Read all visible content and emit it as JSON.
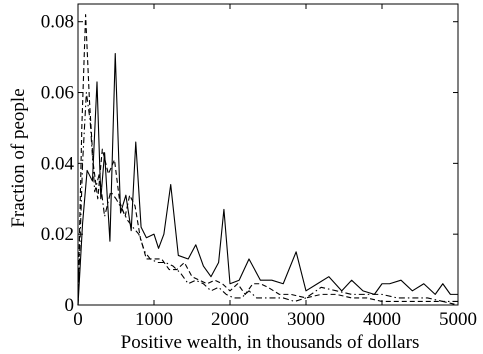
{
  "chart_data": {
    "type": "line",
    "title": "",
    "xlabel": "Positive wealth, in thousands of dollars",
    "ylabel": "Fraction of people",
    "xlim": [
      0,
      5000
    ],
    "ylim": [
      0,
      0.085
    ],
    "xticks": [
      0,
      1000,
      2000,
      3000,
      4000,
      5000
    ],
    "xtick_labels": [
      "0",
      "1000",
      "2000",
      "3000",
      "4000",
      "5000"
    ],
    "yticks": [
      0,
      0.02,
      0.04,
      0.06,
      0.08
    ],
    "ytick_labels": [
      "0",
      "0.02",
      "0.04",
      "0.06",
      "0.08"
    ],
    "grid": false,
    "legend": "none",
    "series": [
      {
        "style": "solid",
        "color": "#000000",
        "x": [
          0,
          60,
          120,
          190,
          250,
          300,
          350,
          420,
          490,
          560,
          630,
          700,
          760,
          830,
          900,
          1000,
          1060,
          1130,
          1220,
          1320,
          1450,
          1550,
          1650,
          1750,
          1850,
          1920,
          2000,
          2120,
          2250,
          2400,
          2550,
          2700,
          2870,
          3000,
          3150,
          3300,
          3470,
          3600,
          3750,
          3900,
          4000,
          4100,
          4250,
          4400,
          4550,
          4700,
          4800,
          4900,
          5000
        ],
        "y": [
          0.0,
          0.023,
          0.038,
          0.035,
          0.063,
          0.03,
          0.043,
          0.018,
          0.071,
          0.026,
          0.031,
          0.021,
          0.046,
          0.022,
          0.019,
          0.02,
          0.016,
          0.02,
          0.034,
          0.014,
          0.013,
          0.017,
          0.011,
          0.008,
          0.012,
          0.027,
          0.006,
          0.007,
          0.013,
          0.007,
          0.007,
          0.006,
          0.015,
          0.004,
          0.006,
          0.008,
          0.004,
          0.007,
          0.004,
          0.003,
          0.006,
          0.006,
          0.007,
          0.004,
          0.006,
          0.003,
          0.006,
          0.003,
          0.003
        ]
      },
      {
        "style": "dashed",
        "color": "#000000",
        "x": [
          0,
          50,
          100,
          150,
          200,
          260,
          320,
          400,
          480,
          550,
          620,
          680,
          750,
          820,
          900,
          1000,
          1100,
          1200,
          1300,
          1400,
          1500,
          1600,
          1700,
          1800,
          1900,
          2000,
          2100,
          2200,
          2300,
          2400,
          2500,
          2650,
          2800,
          3000,
          3200,
          3400,
          3600,
          3800,
          4000,
          4200,
          4400,
          4600,
          4800,
          5000
        ],
        "y": [
          0.0,
          0.05,
          0.082,
          0.058,
          0.04,
          0.03,
          0.044,
          0.037,
          0.041,
          0.029,
          0.025,
          0.031,
          0.028,
          0.019,
          0.013,
          0.013,
          0.013,
          0.01,
          0.01,
          0.012,
          0.008,
          0.007,
          0.006,
          0.007,
          0.006,
          0.004,
          0.006,
          0.003,
          0.006,
          0.006,
          0.005,
          0.003,
          0.003,
          0.002,
          0.003,
          0.003,
          0.002,
          0.002,
          0.001,
          0.001,
          0.001,
          0.001,
          0.001,
          0.0
        ]
      },
      {
        "style": "dashdot",
        "color": "#000000",
        "x": [
          0,
          60,
          110,
          160,
          220,
          280,
          350,
          430,
          500,
          580,
          650,
          720,
          800,
          880,
          950,
          1050,
          1150,
          1250,
          1350,
          1450,
          1550,
          1650,
          1750,
          1850,
          1950,
          2050,
          2150,
          2250,
          2350,
          2450,
          2550,
          2700,
          2850,
          3000,
          3200,
          3400,
          3600,
          3800,
          4000,
          4200,
          4400,
          4600,
          4800,
          5000
        ],
        "y": [
          0.0,
          0.04,
          0.06,
          0.052,
          0.032,
          0.037,
          0.025,
          0.032,
          0.03,
          0.027,
          0.024,
          0.022,
          0.02,
          0.015,
          0.013,
          0.012,
          0.012,
          0.011,
          0.009,
          0.006,
          0.007,
          0.006,
          0.004,
          0.005,
          0.003,
          0.002,
          0.002,
          0.004,
          0.002,
          0.002,
          0.002,
          0.002,
          0.001,
          0.002,
          0.005,
          0.004,
          0.003,
          0.003,
          0.003,
          0.002,
          0.002,
          0.002,
          0.001,
          0.001
        ]
      }
    ]
  }
}
